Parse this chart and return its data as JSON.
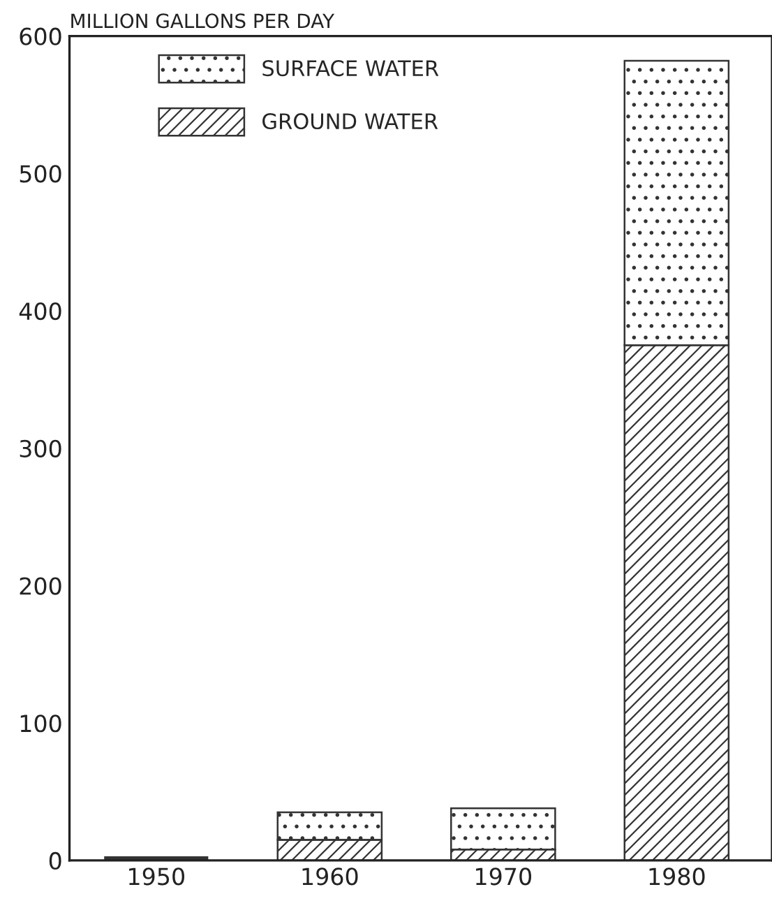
{
  "chart_data": {
    "type": "bar",
    "stacked": true,
    "ylabel": "MILLION GALLONS PER DAY",
    "categories": [
      "1950",
      "1960",
      "1970",
      "1980"
    ],
    "series": [
      {
        "name": "GROUND WATER",
        "color": "#333333",
        "values": [
          2,
          15,
          8,
          375
        ]
      },
      {
        "name": "SURFACE WATER",
        "color": "#333333",
        "values": [
          1,
          20,
          30,
          207
        ]
      }
    ],
    "ylim": [
      0,
      600
    ],
    "yticks": [
      0,
      100,
      200,
      300,
      400,
      500,
      600
    ],
    "grid": false,
    "legend": "top left"
  }
}
